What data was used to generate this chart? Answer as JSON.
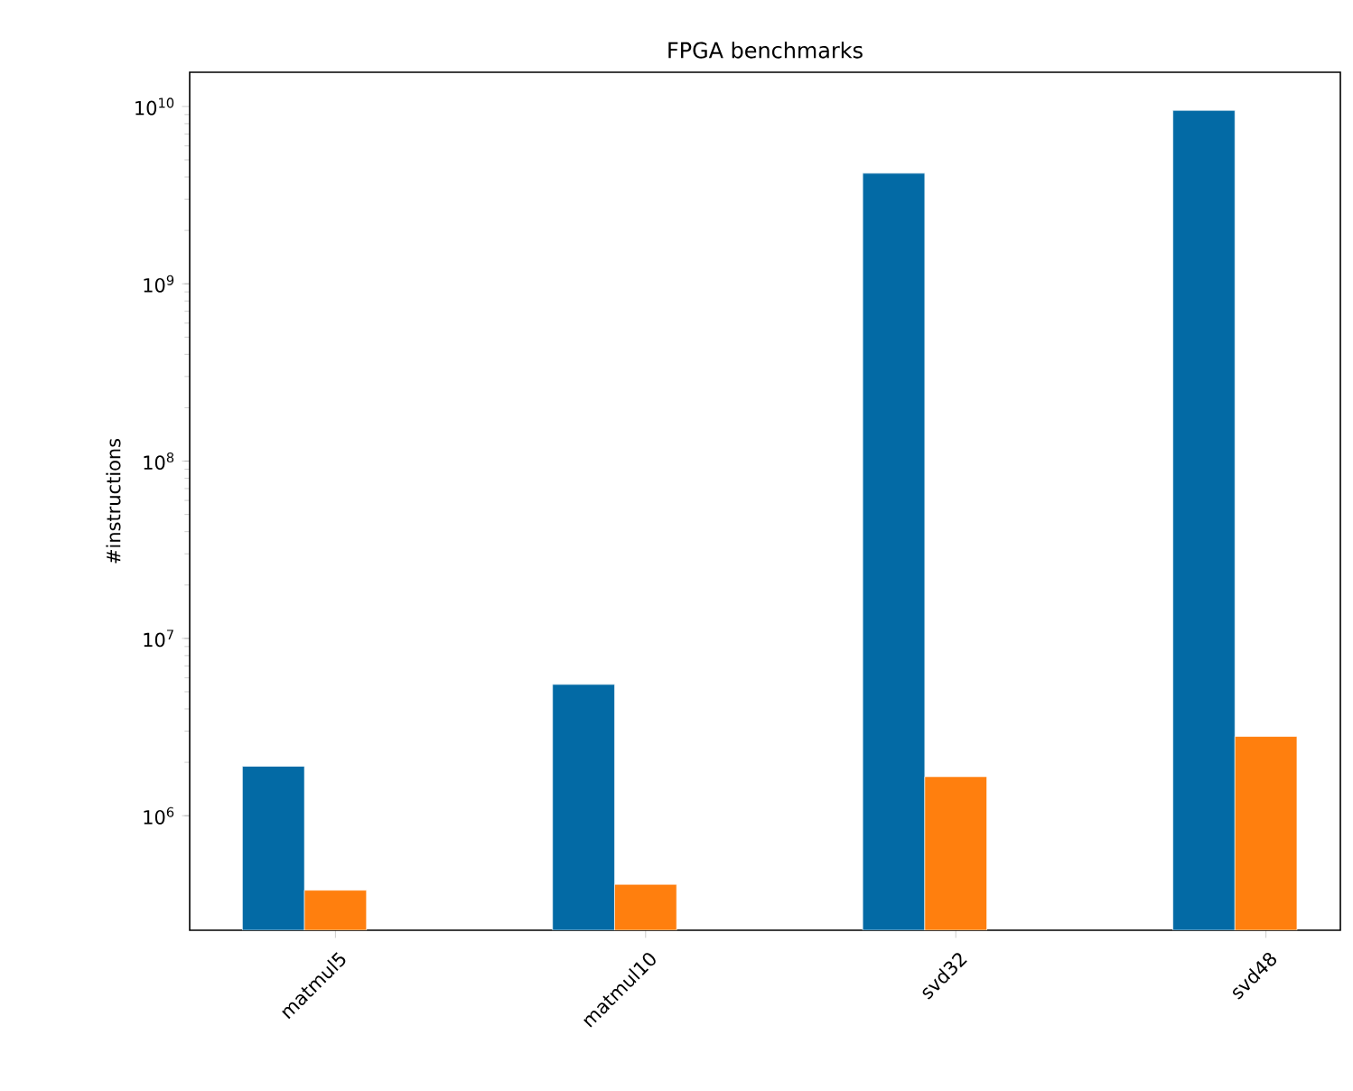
{
  "chart_data": {
    "type": "bar",
    "title": "FPGA benchmarks",
    "ylabel": "#instructions",
    "categories": [
      "matmul5",
      "matmul10",
      "svd32",
      "svd48"
    ],
    "series": [
      {
        "color": "#036aa5",
        "values": [
          1900000,
          5500000,
          4200000000,
          9500000000
        ]
      },
      {
        "color": "#ff7f0e",
        "values": [
          380000,
          410000,
          1660000,
          2800000
        ]
      }
    ],
    "log": true,
    "ylim": [
      226000,
      15600000000
    ],
    "yticks": [
      {
        "value": 1000000,
        "label": "10$^{6}$"
      },
      {
        "value": 10000000,
        "label": "10$^{7}$"
      },
      {
        "value": 100000000,
        "label": "10$^{8}$"
      },
      {
        "value": 1000000000,
        "label": "10$^{9}$"
      },
      {
        "value": 10000000000,
        "label": "10$^{10}$"
      }
    ]
  }
}
